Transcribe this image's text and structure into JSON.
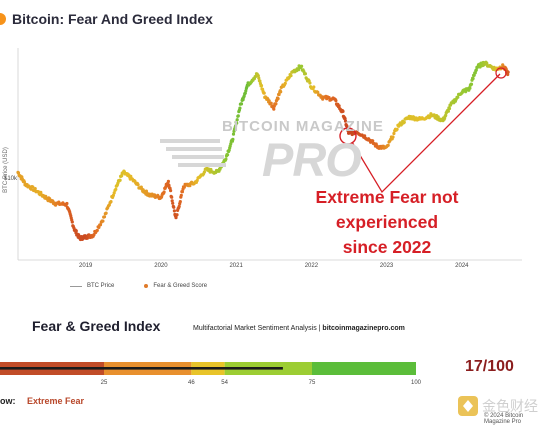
{
  "header": {
    "title": "Bitcoin: Fear And Greed Index"
  },
  "chart_data": {
    "type": "scatter",
    "title": "Bitcoin: Fear And Greed Index",
    "ylabel": "BTC Price (USD)",
    "yscale": "log",
    "y_tick_labels": [
      "$10k"
    ],
    "x_tick_labels": [
      "2019",
      "2020",
      "2021",
      "2022",
      "2023",
      "2024"
    ],
    "xlim": [
      2018.1,
      2024.8
    ],
    "ylim_usd": [
      2500,
      90000
    ],
    "grid": false,
    "legend_position": "bottom-left",
    "series": [
      {
        "name": "BTC Price",
        "color": "#999999",
        "x": [
          2018.1,
          2018.2,
          2018.35,
          2018.5,
          2018.6,
          2018.75,
          2018.85,
          2018.92,
          2019.0,
          2019.1,
          2019.25,
          2019.4,
          2019.5,
          2019.6,
          2019.75,
          2019.85,
          2020.0,
          2020.1,
          2020.2,
          2020.3,
          2020.45,
          2020.6,
          2020.75,
          2020.85,
          2020.95,
          2021.05,
          2021.15,
          2021.28,
          2021.38,
          2021.5,
          2021.6,
          2021.75,
          2021.86,
          2022.0,
          2022.15,
          2022.3,
          2022.42,
          2022.5,
          2022.6,
          2022.75,
          2022.88,
          2023.0,
          2023.15,
          2023.3,
          2023.45,
          2023.6,
          2023.75,
          2023.85,
          2024.0,
          2024.1,
          2024.2,
          2024.3,
          2024.45,
          2024.55,
          2024.62
        ],
        "y": [
          11000,
          9000,
          8000,
          7000,
          6500,
          6400,
          4200,
          3600,
          3700,
          3800,
          5200,
          8500,
          11000,
          10000,
          8200,
          7500,
          7200,
          9500,
          5000,
          8700,
          9200,
          11500,
          11000,
          13500,
          19000,
          33000,
          48000,
          58000,
          40000,
          33000,
          45000,
          60000,
          66000,
          47000,
          39000,
          38000,
          30000,
          21000,
          22000,
          19500,
          17000,
          16600,
          24000,
          28000,
          27000,
          29000,
          26500,
          34000,
          43000,
          45000,
          65000,
          70000,
          63000,
          66000,
          58000
        ]
      },
      {
        "name": "Fear & Greed Score",
        "color": "#e07b2a",
        "x": [
          2018.1,
          2018.4,
          2018.85,
          2019.0,
          2019.45,
          2019.9,
          2020.2,
          2020.5,
          2020.9,
          2021.15,
          2021.38,
          2021.5,
          2021.86,
          2022.15,
          2022.5,
          2022.9,
          2023.2,
          2023.5,
          2023.9,
          2024.2,
          2024.45,
          2024.62
        ],
        "scores": [
          40,
          45,
          15,
          12,
          55,
          35,
          15,
          50,
          80,
          85,
          45,
          25,
          75,
          30,
          10,
          25,
          55,
          50,
          70,
          80,
          55,
          17
        ]
      }
    ]
  },
  "watermark": {
    "line1": "BITCOIN MAGAZINE",
    "line2": "PRO"
  },
  "annotation": {
    "lines": [
      "Extreme Fear not",
      "experienced",
      "since 2022"
    ]
  },
  "gauge": {
    "title": "Fear & Greed Index",
    "subtitle": "Multifactorial Market Sentiment Analysis | ",
    "site": "bitcoinmagazinepro.com",
    "current_value": 17,
    "score_text": "17/100",
    "thresholds": [
      0,
      25,
      46,
      54,
      75,
      100
    ],
    "threshold_labels": [
      "25",
      "46",
      "54",
      "75",
      "100"
    ],
    "colors": [
      "#c14c28",
      "#e8902e",
      "#e8c42a",
      "#9ccd33",
      "#5bbd3a"
    ],
    "now_label": "ow:",
    "now_value": "Extreme Fear"
  },
  "footer": {
    "copyright": "© 2024 Bitcoin Magazine Pro",
    "overlay_text": "金色财经"
  }
}
